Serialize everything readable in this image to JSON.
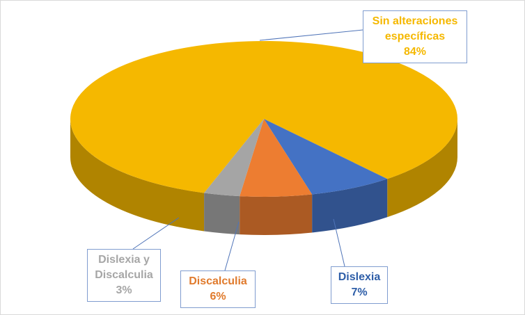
{
  "chart_data": {
    "type": "pie",
    "categories": [
      "Sin alteraciones específicas",
      "Dislexia",
      "Discalculia",
      "Dislexia y Discalculia"
    ],
    "values": [
      84,
      7,
      6,
      3
    ],
    "value_labels": [
      "84%",
      "7%",
      "6%",
      "3%"
    ],
    "colors": [
      "#f5b800",
      "#4472c4",
      "#ed7d31",
      "#a5a5a5"
    ]
  }
}
